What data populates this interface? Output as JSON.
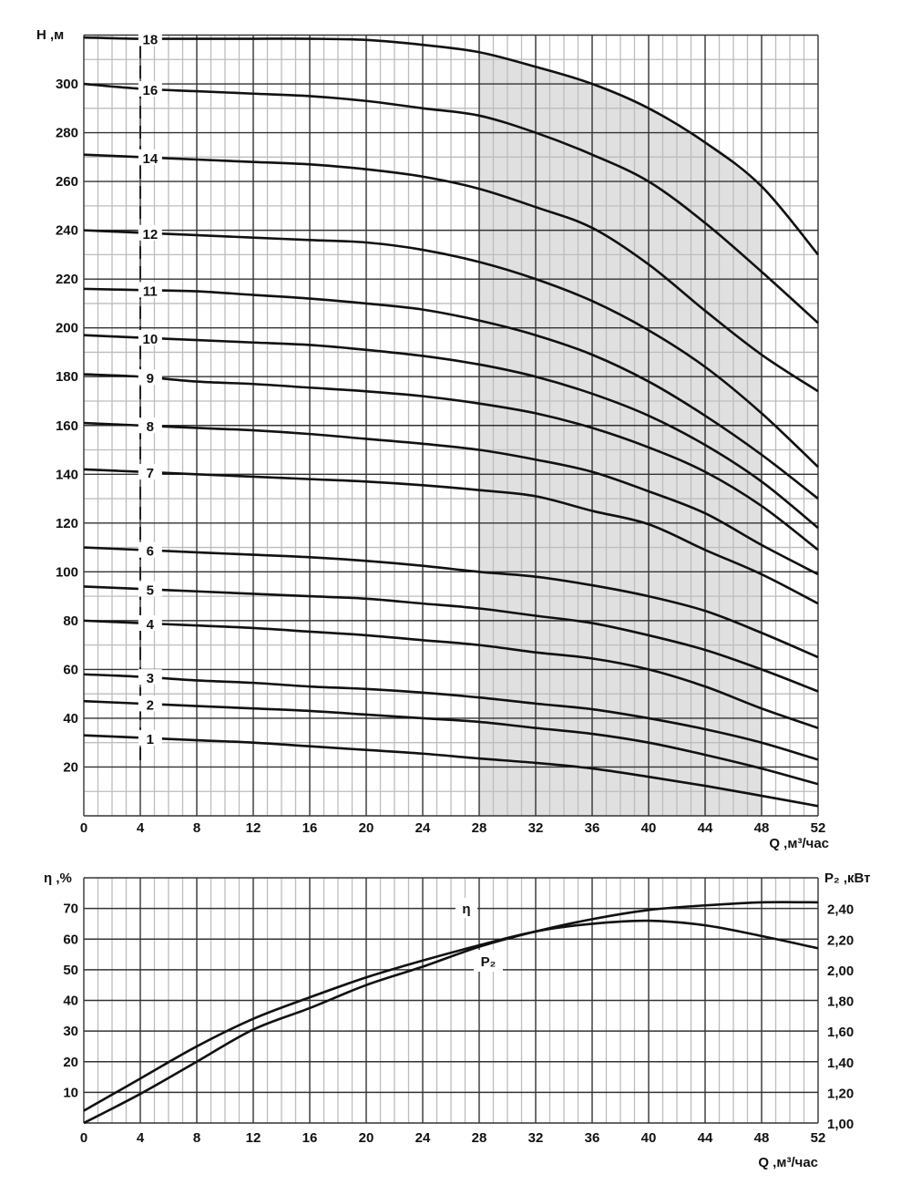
{
  "chart_data": [
    {
      "type": "line",
      "xlabel": "Q ,м³/час",
      "ylabel": "H ,м",
      "xlim": [
        0,
        52
      ],
      "ylim": [
        0,
        320
      ],
      "x_ticks": [
        "0",
        "4",
        "8",
        "12",
        "16",
        "20",
        "24",
        "28",
        "32",
        "36",
        "40",
        "44",
        "48",
        "52"
      ],
      "y_ticks": [
        "20",
        "40",
        "60",
        "80",
        "100",
        "120",
        "140",
        "160",
        "180",
        "200",
        "220",
        "240",
        "260",
        "280",
        "300"
      ],
      "grid": true,
      "shaded_range_x": [
        28,
        48
      ],
      "shade_color": "#e0e0e0",
      "line_color": "#111111",
      "x": [
        0,
        4,
        8,
        12,
        16,
        20,
        24,
        28,
        32,
        36,
        40,
        44,
        48,
        52
      ],
      "series": [
        {
          "name": "18",
          "values": [
            319,
            318.5,
            318.5,
            318.5,
            318.5,
            318,
            316,
            313,
            307,
            300,
            290,
            276,
            258,
            230
          ]
        },
        {
          "name": "16",
          "values": [
            300,
            298,
            297,
            296,
            295,
            293,
            290,
            287,
            280,
            271,
            260,
            243,
            223,
            202
          ]
        },
        {
          "name": "14",
          "values": [
            271,
            270,
            269,
            268,
            267,
            265,
            262,
            257,
            249.5,
            241,
            226,
            207,
            189,
            174
          ]
        },
        {
          "name": "12",
          "values": [
            240,
            239,
            238,
            237,
            236,
            235,
            232,
            227,
            220,
            211,
            199,
            184,
            165,
            143
          ]
        },
        {
          "name": "11",
          "values": [
            216,
            215.5,
            215,
            213.5,
            212,
            210,
            207.5,
            203,
            197,
            189,
            178,
            164,
            148,
            130
          ]
        },
        {
          "name": "10",
          "values": [
            197,
            196,
            195,
            194,
            193,
            191,
            188.5,
            185,
            180,
            173,
            164,
            152,
            137,
            118
          ]
        },
        {
          "name": "9",
          "values": [
            181,
            180,
            178,
            177,
            175.5,
            174,
            172,
            169,
            165,
            159,
            151,
            141,
            127,
            109
          ]
        },
        {
          "name": "8",
          "values": [
            161,
            160,
            159,
            158,
            156.5,
            154.5,
            152.5,
            150,
            146,
            141,
            133,
            124,
            111,
            99
          ]
        },
        {
          "name": "7",
          "values": [
            142,
            141,
            140,
            139,
            138,
            137,
            135.5,
            133.5,
            131,
            125,
            119.5,
            109,
            99,
            87
          ]
        },
        {
          "name": "6",
          "values": [
            110,
            109,
            108,
            107,
            106,
            104.5,
            102.5,
            100,
            98,
            94.5,
            90,
            84,
            75,
            65
          ]
        },
        {
          "name": "5",
          "values": [
            94,
            93,
            92,
            91,
            90,
            89,
            87,
            85,
            82,
            79,
            74,
            68,
            60,
            51
          ]
        },
        {
          "name": "4",
          "values": [
            80,
            79,
            78,
            77,
            75.5,
            74,
            72,
            70,
            67,
            64.5,
            60,
            53,
            44,
            36
          ]
        },
        {
          "name": "3",
          "values": [
            58,
            57,
            55.5,
            54.5,
            53,
            52,
            50.5,
            48.5,
            46,
            43.7,
            40,
            35.5,
            30,
            23
          ]
        },
        {
          "name": "2",
          "values": [
            47,
            46,
            45,
            44,
            43,
            41.5,
            40,
            38.5,
            36,
            33.6,
            30,
            25,
            19.4,
            13
          ]
        },
        {
          "name": "1",
          "values": [
            33,
            32,
            31,
            30,
            28.5,
            27,
            25.5,
            23.5,
            21.7,
            19.4,
            16,
            12.3,
            8.2,
            4
          ]
        }
      ]
    },
    {
      "type": "line",
      "xlabel": "Q ,м³/час",
      "ylabel": "η ,%",
      "ylabel_right": "P₂ ,кВт",
      "xlim": [
        0,
        52
      ],
      "ylim": [
        0,
        80
      ],
      "ylim_right": [
        1.0,
        2.6
      ],
      "x_ticks": [
        "0",
        "4",
        "8",
        "12",
        "16",
        "20",
        "24",
        "28",
        "32",
        "36",
        "40",
        "44",
        "48",
        "52"
      ],
      "y_ticks": [
        "10",
        "20",
        "30",
        "40",
        "50",
        "60",
        "70"
      ],
      "y_ticks_right": [
        "1,00",
        "1,20",
        "1,40",
        "1,60",
        "1,80",
        "2,00",
        "2,20",
        "2,40"
      ],
      "grid": true,
      "line_color": "#111111",
      "x": [
        0,
        4,
        8,
        12,
        16,
        20,
        24,
        28,
        32,
        36,
        40,
        44,
        48,
        52
      ],
      "series": [
        {
          "name": "η",
          "axis": "left",
          "values": [
            4,
            14.5,
            25,
            34,
            41,
            47.5,
            53,
            58,
            62.5,
            65,
            66,
            64.5,
            61,
            57
          ]
        },
        {
          "name": "P₂",
          "axis": "right",
          "values": [
            1.0,
            1.19,
            1.4,
            1.61,
            1.75,
            1.9,
            2.02,
            2.15,
            2.25,
            2.33,
            2.39,
            2.42,
            2.44,
            2.44
          ]
        }
      ]
    }
  ]
}
